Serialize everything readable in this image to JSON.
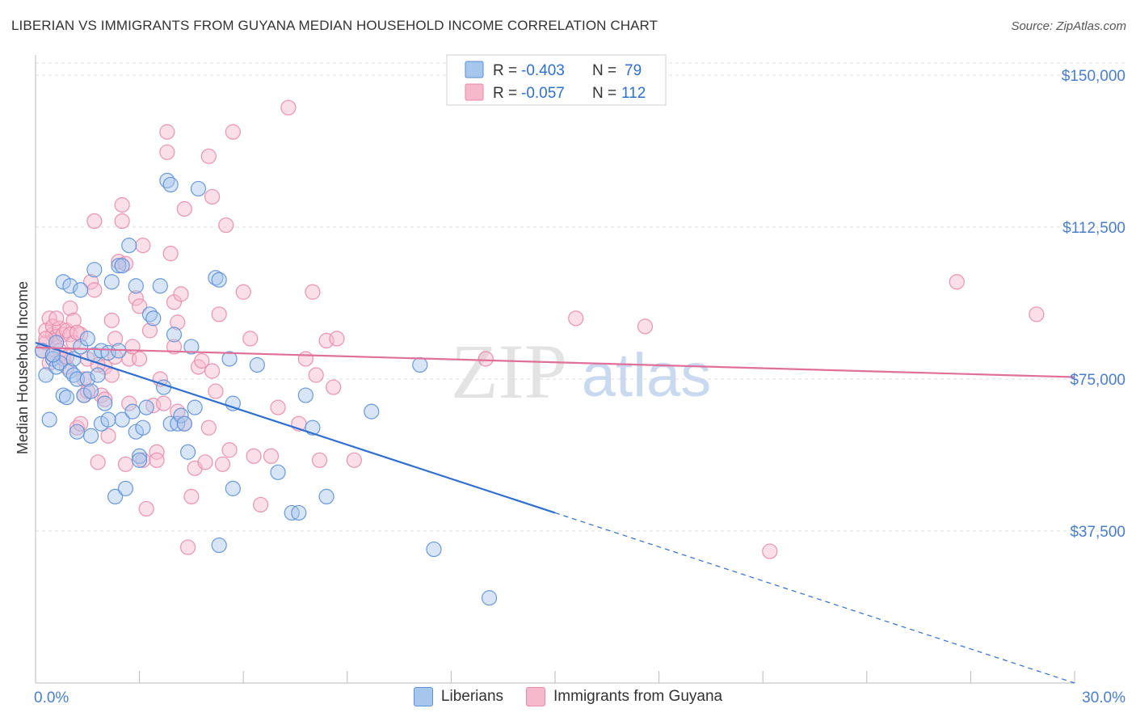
{
  "header": {
    "title": "LIBERIAN VS IMMIGRANTS FROM GUYANA MEDIAN HOUSEHOLD INCOME CORRELATION CHART",
    "source": "Source: ZipAtlas.com"
  },
  "watermark": {
    "part1": "ZIP",
    "part2": "atlas"
  },
  "colors": {
    "blue_fill": "#a7c6ee",
    "blue_stroke": "#5b8fd6",
    "blue_line": "#2f6fd0",
    "pink_fill": "#f6b8cb",
    "pink_stroke": "#e58aa8",
    "pink_line": "#e0709a",
    "tick_label": "#4a7ec9"
  },
  "chart_data": {
    "type": "scatter",
    "title": "LIBERIAN VS IMMIGRANTS FROM GUYANA MEDIAN HOUSEHOLD INCOME CORRELATION CHART",
    "xlabel": "",
    "ylabel": "Median Household Income",
    "xlim": [
      0,
      30
    ],
    "ylim": [
      0,
      155000
    ],
    "x_tick_labels": [
      "0.0%",
      "30.0%"
    ],
    "y_ticks": [
      37500,
      75000,
      112500,
      150000
    ],
    "y_tick_labels": [
      "$37,500",
      "$75,000",
      "$112,500",
      "$150,000"
    ],
    "grid": true,
    "legend_position": "top-center",
    "stats": [
      {
        "r_label": "R =",
        "r_value": "-0.403",
        "n_label": "N =",
        "n_value": "79"
      },
      {
        "r_label": "R =",
        "r_value": "-0.057",
        "n_label": "N =",
        "n_value": "112"
      }
    ],
    "series": [
      {
        "name": "Liberians",
        "trend": {
          "x_start": 0.0,
          "y_start": 84000,
          "x_solid_end": 15.0,
          "y_solid_end": 42000,
          "x_dash_end": 30.0,
          "y_dash_end": 0
        },
        "points": [
          [
            0.2,
            82000
          ],
          [
            0.3,
            76000
          ],
          [
            0.4,
            65000
          ],
          [
            0.5,
            80000
          ],
          [
            0.6,
            84000
          ],
          [
            0.6,
            78000
          ],
          [
            0.7,
            79000
          ],
          [
            0.8,
            71000
          ],
          [
            0.8,
            99000
          ],
          [
            0.9,
            70500
          ],
          [
            1.0,
            77000
          ],
          [
            1.0,
            98000
          ],
          [
            1.1,
            76000
          ],
          [
            1.1,
            80000
          ],
          [
            1.2,
            75000
          ],
          [
            1.2,
            62000
          ],
          [
            1.3,
            97000
          ],
          [
            1.4,
            71000
          ],
          [
            1.5,
            75000
          ],
          [
            1.6,
            72000
          ],
          [
            1.6,
            61000
          ],
          [
            1.7,
            102000
          ],
          [
            1.7,
            81000
          ],
          [
            1.8,
            76000
          ],
          [
            1.9,
            64000
          ],
          [
            1.9,
            82000
          ],
          [
            2.0,
            69000
          ],
          [
            2.1,
            81500
          ],
          [
            2.1,
            65000
          ],
          [
            2.2,
            99000
          ],
          [
            2.3,
            46000
          ],
          [
            2.4,
            82000
          ],
          [
            2.4,
            103000
          ],
          [
            2.5,
            65000
          ],
          [
            2.5,
            103000
          ],
          [
            2.6,
            48000
          ],
          [
            2.7,
            108000
          ],
          [
            2.8,
            67000
          ],
          [
            2.9,
            98000
          ],
          [
            2.9,
            62000
          ],
          [
            3.0,
            56000
          ],
          [
            3.0,
            55000
          ],
          [
            3.1,
            63000
          ],
          [
            3.2,
            68000
          ],
          [
            3.3,
            91000
          ],
          [
            3.4,
            90000
          ],
          [
            3.6,
            98000
          ],
          [
            3.7,
            73000
          ],
          [
            3.8,
            124000
          ],
          [
            3.9,
            123000
          ],
          [
            3.9,
            64000
          ],
          [
            4.0,
            86000
          ],
          [
            4.1,
            64000
          ],
          [
            4.2,
            66000
          ],
          [
            4.3,
            64000
          ],
          [
            4.4,
            57000
          ],
          [
            4.5,
            83000
          ],
          [
            4.6,
            68000
          ],
          [
            4.7,
            122000
          ],
          [
            5.2,
            100000
          ],
          [
            5.3,
            99500
          ],
          [
            5.3,
            34000
          ],
          [
            5.6,
            80000
          ],
          [
            5.7,
            69000
          ],
          [
            5.7,
            48000
          ],
          [
            6.4,
            78500
          ],
          [
            7.0,
            52000
          ],
          [
            7.4,
            42000
          ],
          [
            7.6,
            42000
          ],
          [
            7.8,
            71000
          ],
          [
            8.0,
            63000
          ],
          [
            8.4,
            46000
          ],
          [
            9.7,
            67000
          ],
          [
            11.1,
            78500
          ],
          [
            11.5,
            33000
          ],
          [
            13.1,
            21000
          ],
          [
            0.5,
            81000
          ],
          [
            1.3,
            83000
          ],
          [
            1.5,
            85000
          ]
        ]
      },
      {
        "name": "Immigrants from Guyana",
        "trend": {
          "x_start": 0.0,
          "y_start": 82800,
          "x_solid_end": 30.0,
          "y_solid_end": 75500,
          "x_dash_end": 30.0,
          "y_dash_end": 75500
        },
        "points": [
          [
            0.2,
            82000
          ],
          [
            0.3,
            84000
          ],
          [
            0.3,
            87000
          ],
          [
            0.4,
            90000
          ],
          [
            0.4,
            79000
          ],
          [
            0.5,
            86000
          ],
          [
            0.5,
            88000
          ],
          [
            0.6,
            85500
          ],
          [
            0.6,
            84000
          ],
          [
            0.7,
            87500
          ],
          [
            0.7,
            82000
          ],
          [
            0.8,
            80000
          ],
          [
            0.8,
            86000
          ],
          [
            0.9,
            78000
          ],
          [
            0.9,
            87000
          ],
          [
            1.0,
            92500
          ],
          [
            1.0,
            86000
          ],
          [
            1.1,
            84000
          ],
          [
            1.1,
            89500
          ],
          [
            1.2,
            63000
          ],
          [
            1.3,
            64000
          ],
          [
            1.3,
            86000
          ],
          [
            1.4,
            75000
          ],
          [
            1.4,
            71000
          ],
          [
            1.5,
            80000
          ],
          [
            1.6,
            99000
          ],
          [
            1.7,
            97000
          ],
          [
            1.7,
            114000
          ],
          [
            1.8,
            54500
          ],
          [
            1.9,
            71000
          ],
          [
            2.0,
            78000
          ],
          [
            2.1,
            61000
          ],
          [
            2.2,
            76000
          ],
          [
            2.2,
            89500
          ],
          [
            2.3,
            85000
          ],
          [
            2.3,
            80500
          ],
          [
            2.4,
            104000
          ],
          [
            2.5,
            118000
          ],
          [
            2.5,
            114000
          ],
          [
            2.6,
            103500
          ],
          [
            2.6,
            54000
          ],
          [
            2.7,
            80000
          ],
          [
            2.8,
            83000
          ],
          [
            2.9,
            95000
          ],
          [
            3.0,
            93000
          ],
          [
            3.0,
            80000
          ],
          [
            3.1,
            108000
          ],
          [
            3.1,
            55000
          ],
          [
            3.2,
            43000
          ],
          [
            3.3,
            87000
          ],
          [
            3.4,
            68500
          ],
          [
            3.5,
            57000
          ],
          [
            3.5,
            55000
          ],
          [
            3.6,
            75000
          ],
          [
            3.7,
            69000
          ],
          [
            3.8,
            136000
          ],
          [
            3.8,
            131000
          ],
          [
            3.9,
            106000
          ],
          [
            4.0,
            94000
          ],
          [
            4.1,
            89000
          ],
          [
            4.1,
            67000
          ],
          [
            4.2,
            96000
          ],
          [
            4.3,
            117000
          ],
          [
            4.3,
            64000
          ],
          [
            4.4,
            33500
          ],
          [
            4.5,
            46000
          ],
          [
            4.6,
            53000
          ],
          [
            4.7,
            78000
          ],
          [
            4.8,
            79500
          ],
          [
            4.9,
            54500
          ],
          [
            5.0,
            63000
          ],
          [
            5.0,
            130000
          ],
          [
            5.1,
            120000
          ],
          [
            5.1,
            77000
          ],
          [
            5.2,
            72000
          ],
          [
            5.3,
            91000
          ],
          [
            5.4,
            54000
          ],
          [
            5.5,
            113000
          ],
          [
            5.6,
            57500
          ],
          [
            5.7,
            136000
          ],
          [
            6.0,
            96500
          ],
          [
            6.2,
            85000
          ],
          [
            6.3,
            56000
          ],
          [
            6.5,
            44000
          ],
          [
            6.8,
            56000
          ],
          [
            7.0,
            68000
          ],
          [
            7.3,
            142000
          ],
          [
            7.6,
            64000
          ],
          [
            7.8,
            80000
          ],
          [
            8.0,
            96500
          ],
          [
            8.1,
            76000
          ],
          [
            8.2,
            55000
          ],
          [
            8.4,
            84500
          ],
          [
            8.6,
            73000
          ],
          [
            8.7,
            85000
          ],
          [
            9.2,
            55000
          ],
          [
            15.6,
            90000
          ],
          [
            17.6,
            88000
          ],
          [
            21.2,
            32500
          ],
          [
            26.6,
            99000
          ],
          [
            28.9,
            91000
          ],
          [
            13.0,
            80000
          ],
          [
            0.3,
            85000
          ],
          [
            0.5,
            81000
          ],
          [
            0.9,
            80500
          ],
          [
            1.2,
            86500
          ],
          [
            1.8,
            78500
          ],
          [
            2.0,
            70000
          ],
          [
            1.5,
            72000
          ],
          [
            0.6,
            90000
          ],
          [
            2.7,
            69000
          ],
          [
            4.0,
            83000
          ]
        ]
      }
    ]
  }
}
